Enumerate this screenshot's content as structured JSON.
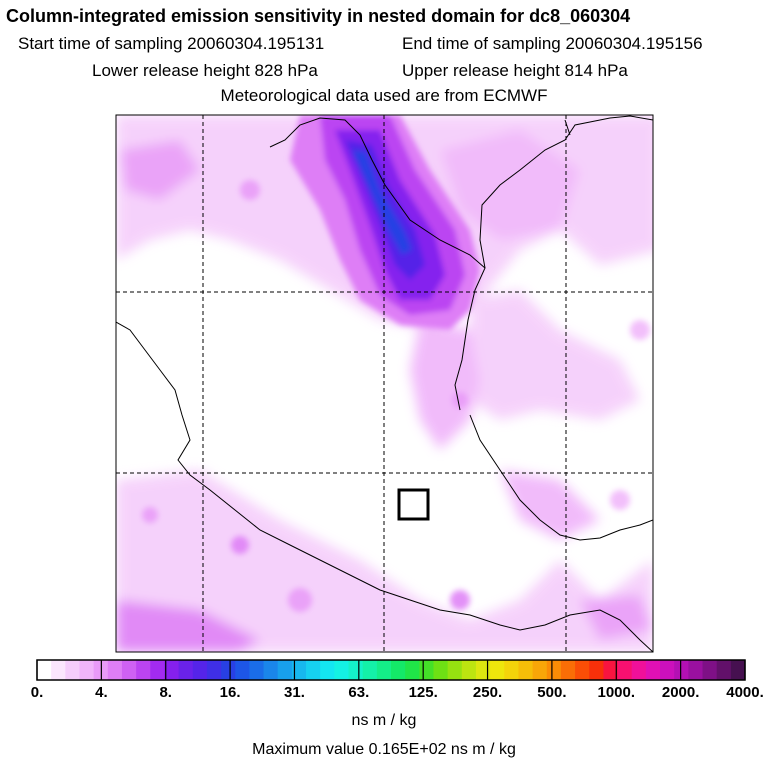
{
  "header": {
    "title": "Column-integrated emission sensitivity in nested domain for dc8_060304",
    "start_label": "Start time of sampling 20060304.195131",
    "end_label": "End time of sampling 20060304.195156",
    "lower_label": "Lower release height  828 hPa",
    "upper_label": "Upper release height  814 hPa",
    "met_label": "Meteorological data used are from ECMWF"
  },
  "colorbar": {
    "ticks": [
      "0.",
      "4.",
      "8.",
      "16.",
      "31.",
      "63.",
      "125.",
      "250.",
      "500.",
      "1000.",
      "2000.",
      "4000."
    ],
    "colors": [
      "#ffffff",
      "#fbe6fd",
      "#f5cdfb",
      "#f0b4fa",
      "#e89af8",
      "#de7ef6",
      "#cf61f4",
      "#bb44f2",
      "#a22bf0",
      "#8520ee",
      "#6a22ea",
      "#5524e8",
      "#3f2fe6",
      "#2840e4",
      "#1d56e6",
      "#1a6de8",
      "#1a86ea",
      "#18a0ec",
      "#17b8ee",
      "#16d0f0",
      "#14e6f2",
      "#14f2e4",
      "#14f2c8",
      "#14f2a8",
      "#14ee88",
      "#14e868",
      "#20e448",
      "#44e028",
      "#6ee014",
      "#96e210",
      "#bce410",
      "#dce610",
      "#eee60c",
      "#f4d40a",
      "#f6be08",
      "#f8a608",
      "#fa8c06",
      "#fa6e06",
      "#fa4e06",
      "#f8300a",
      "#f81440",
      "#f81070",
      "#f0109a",
      "#e010b4",
      "#cc10bc",
      "#b410b4",
      "#9a10a0",
      "#7e1086",
      "#62106a",
      "#461050"
    ],
    "units": "ns m / kg"
  },
  "footer": {
    "max_value": "Maximum value  0.165E+02 ns m / kg"
  },
  "marker": "release-box"
}
